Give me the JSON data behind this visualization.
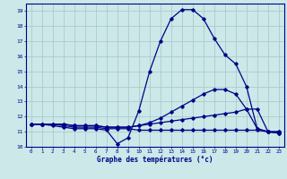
{
  "title": "Graphe des températures (°c)",
  "bg_color": "#cce8e8",
  "grid_color": "#aacccc",
  "line_color": "#000088",
  "xlim": [
    -0.5,
    23.5
  ],
  "ylim": [
    10,
    19.5
  ],
  "yticks": [
    10,
    11,
    12,
    13,
    14,
    15,
    16,
    17,
    18,
    19
  ],
  "xticks": [
    0,
    1,
    2,
    3,
    4,
    5,
    6,
    7,
    8,
    9,
    10,
    11,
    12,
    13,
    14,
    15,
    16,
    17,
    18,
    19,
    20,
    21,
    22,
    23
  ],
  "series": [
    {
      "x": [
        0,
        1,
        2,
        3,
        4,
        5,
        6,
        7,
        8,
        9,
        10,
        11,
        12,
        13,
        14,
        15,
        16,
        17,
        18,
        19,
        20,
        21,
        22,
        23
      ],
      "y": [
        11.5,
        11.5,
        11.4,
        11.3,
        11.2,
        11.2,
        11.2,
        11.1,
        10.2,
        10.6,
        12.4,
        15.0,
        17.0,
        18.5,
        19.1,
        19.1,
        18.5,
        17.2,
        16.1,
        15.5,
        14.0,
        11.2,
        11.0,
        10.9
      ]
    },
    {
      "x": [
        0,
        1,
        2,
        3,
        4,
        5,
        6,
        7,
        8,
        9,
        10,
        11,
        12,
        13,
        14,
        15,
        16,
        17,
        18,
        19,
        20,
        21,
        22,
        23
      ],
      "y": [
        11.5,
        11.5,
        11.5,
        11.5,
        11.4,
        11.4,
        11.4,
        11.3,
        11.3,
        11.3,
        11.4,
        11.6,
        11.9,
        12.3,
        12.7,
        13.1,
        13.5,
        13.8,
        13.8,
        13.5,
        12.5,
        11.2,
        11.0,
        11.0
      ]
    },
    {
      "x": [
        0,
        1,
        2,
        3,
        4,
        5,
        6,
        7,
        8,
        9,
        10,
        11,
        12,
        13,
        14,
        15,
        16,
        17,
        18,
        19,
        20,
        21,
        22,
        23
      ],
      "y": [
        11.5,
        11.5,
        11.5,
        11.5,
        11.4,
        11.4,
        11.4,
        11.3,
        11.3,
        11.3,
        11.4,
        11.5,
        11.6,
        11.7,
        11.8,
        11.9,
        12.0,
        12.1,
        12.2,
        12.3,
        12.5,
        12.5,
        11.0,
        11.0
      ]
    },
    {
      "x": [
        0,
        1,
        2,
        3,
        4,
        5,
        6,
        7,
        8,
        9,
        10,
        11,
        12,
        13,
        14,
        15,
        16,
        17,
        18,
        19,
        20,
        21,
        22,
        23
      ],
      "y": [
        11.5,
        11.5,
        11.5,
        11.4,
        11.3,
        11.3,
        11.3,
        11.2,
        11.2,
        11.2,
        11.1,
        11.1,
        11.1,
        11.1,
        11.1,
        11.1,
        11.1,
        11.1,
        11.1,
        11.1,
        11.1,
        11.1,
        11.0,
        10.9
      ]
    }
  ]
}
